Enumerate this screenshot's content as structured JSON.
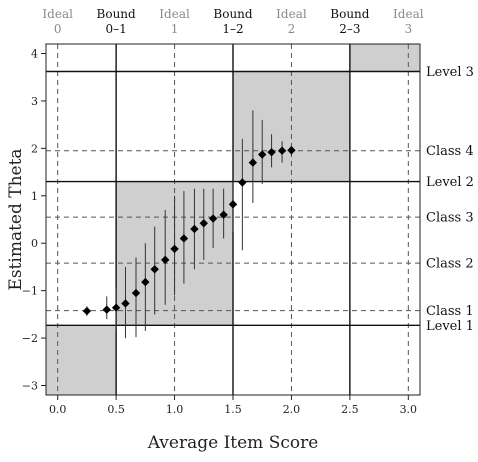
{
  "chart_data": {
    "type": "scatter",
    "xlabel": "Average Item Score",
    "ylabel": "Estimated Theta",
    "xlim": [
      -0.1,
      3.1
    ],
    "ylim": [
      -3.2,
      4.2
    ],
    "x_ticks": [
      "0.0",
      "0.5",
      "1.0",
      "1.5",
      "2.0",
      "2.5",
      "3.0"
    ],
    "y_ticks": [
      "−3",
      "−2",
      "−1",
      "0",
      "1",
      "2",
      "3",
      "4"
    ],
    "grid": false,
    "top_labels": [
      {
        "kind": "ideal",
        "line1": "Ideal",
        "line2": "0",
        "x": 0.0
      },
      {
        "kind": "bound",
        "line1": "Bound",
        "line2": "0–1",
        "x": 0.5
      },
      {
        "kind": "ideal",
        "line1": "Ideal",
        "line2": "1",
        "x": 1.0
      },
      {
        "kind": "bound",
        "line1": "Bound",
        "line2": "1–2",
        "x": 1.5
      },
      {
        "kind": "ideal",
        "line1": "Ideal",
        "line2": "2",
        "x": 2.0
      },
      {
        "kind": "bound",
        "line1": "Bound",
        "line2": "2–3",
        "x": 2.5
      },
      {
        "kind": "ideal",
        "line1": "Ideal",
        "line2": "3",
        "x": 3.0
      }
    ],
    "level_lines": [
      {
        "label": "Level 3",
        "y": 3.62
      },
      {
        "label": "Level 2",
        "y": 1.3
      },
      {
        "label": "Level 1",
        "y": -1.73
      }
    ],
    "class_lines": [
      {
        "label": "Class 4",
        "y": 1.95
      },
      {
        "label": "Class 3",
        "y": 0.55
      },
      {
        "label": "Class 2",
        "y": -0.42
      },
      {
        "label": "Class 1",
        "y": -1.42
      }
    ],
    "shaded_regions": [
      {
        "x": [
          -0.1,
          0.5
        ],
        "y": [
          -3.2,
          -1.73
        ]
      },
      {
        "x": [
          0.5,
          1.5
        ],
        "y": [
          -1.73,
          1.3
        ]
      },
      {
        "x": [
          1.5,
          2.5
        ],
        "y": [
          1.3,
          3.62
        ]
      },
      {
        "x": [
          2.5,
          3.1
        ],
        "y": [
          3.62,
          4.2
        ]
      }
    ],
    "points": [
      {
        "x": 0.25,
        "y": -1.43,
        "lo": -1.53,
        "hi": -1.33
      },
      {
        "x": 0.42,
        "y": -1.4,
        "lo": -1.6,
        "hi": -1.12
      },
      {
        "x": 0.5,
        "y": -1.36,
        "lo": -1.85,
        "hi": -0.95
      },
      {
        "x": 0.58,
        "y": -1.27,
        "lo": -2.0,
        "hi": -0.5
      },
      {
        "x": 0.67,
        "y": -1.05,
        "lo": -1.98,
        "hi": -0.3
      },
      {
        "x": 0.75,
        "y": -0.82,
        "lo": -1.85,
        "hi": 0.0
      },
      {
        "x": 0.83,
        "y": -0.55,
        "lo": -1.5,
        "hi": 0.35
      },
      {
        "x": 0.92,
        "y": -0.35,
        "lo": -1.3,
        "hi": 0.7
      },
      {
        "x": 1.0,
        "y": -0.12,
        "lo": -1.1,
        "hi": 1.0
      },
      {
        "x": 1.08,
        "y": 0.1,
        "lo": -0.85,
        "hi": 1.1
      },
      {
        "x": 1.17,
        "y": 0.3,
        "lo": -0.55,
        "hi": 1.15
      },
      {
        "x": 1.25,
        "y": 0.42,
        "lo": -0.35,
        "hi": 1.15
      },
      {
        "x": 1.33,
        "y": 0.52,
        "lo": -0.1,
        "hi": 1.15
      },
      {
        "x": 1.42,
        "y": 0.6,
        "lo": 0.1,
        "hi": 1.15
      },
      {
        "x": 1.5,
        "y": 0.82,
        "lo": 0.25,
        "hi": 1.3
      },
      {
        "x": 1.58,
        "y": 1.28,
        "lo": -0.15,
        "hi": 2.2
      },
      {
        "x": 1.67,
        "y": 1.7,
        "lo": 0.85,
        "hi": 2.8
      },
      {
        "x": 1.75,
        "y": 1.87,
        "lo": 1.25,
        "hi": 2.6
      },
      {
        "x": 1.83,
        "y": 1.92,
        "lo": 1.6,
        "hi": 2.3
      },
      {
        "x": 1.92,
        "y": 1.95,
        "lo": 1.7,
        "hi": 2.15
      },
      {
        "x": 2.0,
        "y": 1.96,
        "lo": 1.85,
        "hi": 2.05
      }
    ]
  }
}
